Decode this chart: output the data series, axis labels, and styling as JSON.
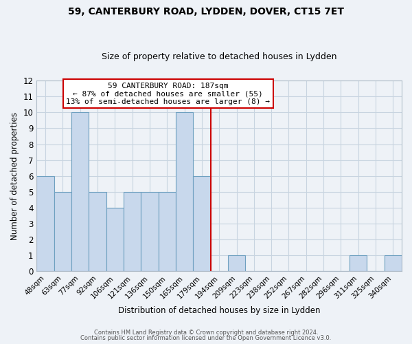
{
  "title": "59, CANTERBURY ROAD, LYDDEN, DOVER, CT15 7ET",
  "subtitle": "Size of property relative to detached houses in Lydden",
  "xlabel": "Distribution of detached houses by size in Lydden",
  "ylabel": "Number of detached properties",
  "bar_labels": [
    "48sqm",
    "63sqm",
    "77sqm",
    "92sqm",
    "106sqm",
    "121sqm",
    "136sqm",
    "150sqm",
    "165sqm",
    "179sqm",
    "194sqm",
    "209sqm",
    "223sqm",
    "238sqm",
    "252sqm",
    "267sqm",
    "282sqm",
    "296sqm",
    "311sqm",
    "325sqm",
    "340sqm"
  ],
  "bar_values": [
    6,
    5,
    10,
    5,
    4,
    5,
    5,
    5,
    10,
    6,
    0,
    1,
    0,
    0,
    0,
    0,
    0,
    0,
    1,
    0,
    1
  ],
  "bar_color": "#c8d8ec",
  "bar_edgecolor": "#6ea0c0",
  "ylim": [
    0,
    12
  ],
  "yticks": [
    0,
    1,
    2,
    3,
    4,
    5,
    6,
    7,
    8,
    9,
    10,
    11,
    12
  ],
  "vline_color": "#cc0000",
  "annotation_title": "59 CANTERBURY ROAD: 187sqm",
  "annotation_line1": "← 87% of detached houses are smaller (55)",
  "annotation_line2": "13% of semi-detached houses are larger (8) →",
  "annotation_box_edgecolor": "#cc0000",
  "grid_color": "#c8d4e0",
  "bg_color": "#eef2f7",
  "footer1": "Contains HM Land Registry data © Crown copyright and database right 2024.",
  "footer2": "Contains public sector information licensed under the Open Government Licence v3.0."
}
